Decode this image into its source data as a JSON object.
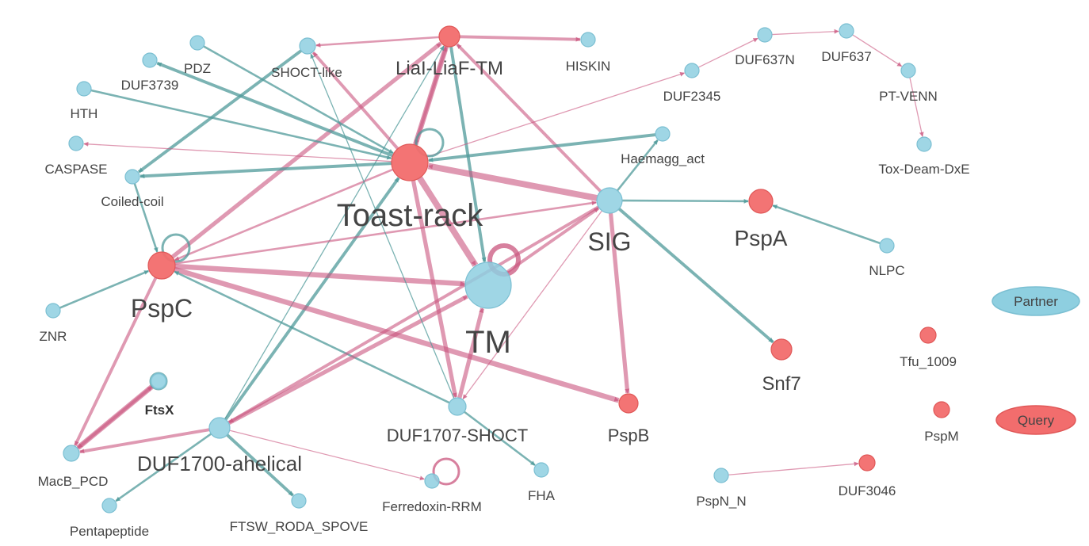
{
  "colors": {
    "query": "#f26d6d",
    "query_stroke": "#e05858",
    "partner": "#8ecfe0",
    "partner_stroke": "#7bbfd2",
    "edge_pink": "#c9557e",
    "edge_teal": "#4f9a9a"
  },
  "legend": {
    "partner": "Partner",
    "query": "Query"
  },
  "nodes": [
    {
      "id": "lialiaf",
      "label": "LiaI-LiaF-TM",
      "type": "query"
    },
    {
      "id": "hiskin",
      "label": "HISKIN",
      "type": "partner"
    },
    {
      "id": "shoct",
      "label": "SHOCT-like",
      "type": "partner"
    },
    {
      "id": "pdz",
      "label": "PDZ",
      "type": "partner"
    },
    {
      "id": "duf3739",
      "label": "DUF3739",
      "type": "partner"
    },
    {
      "id": "hth",
      "label": "HTH",
      "type": "partner"
    },
    {
      "id": "caspase",
      "label": "CASPASE",
      "type": "partner"
    },
    {
      "id": "coiled",
      "label": "Coiled-coil",
      "type": "partner"
    },
    {
      "id": "toast",
      "label": "Toast-rack",
      "type": "query"
    },
    {
      "id": "sig",
      "label": "SIG",
      "type": "partner"
    },
    {
      "id": "tm",
      "label": "TM",
      "type": "partner"
    },
    {
      "id": "pspc",
      "label": "PspC",
      "type": "query"
    },
    {
      "id": "znr",
      "label": "ZNR",
      "type": "partner"
    },
    {
      "id": "ftsx",
      "label": "FtsX",
      "type": "partner"
    },
    {
      "id": "macb",
      "label": "MacB_PCD",
      "type": "partner"
    },
    {
      "id": "penta",
      "label": "Pentapeptide",
      "type": "partner"
    },
    {
      "id": "duf1700",
      "label": "DUF1700-ahelical",
      "type": "partner"
    },
    {
      "id": "ftsw",
      "label": "FTSW_RODA_SPOVE",
      "type": "partner"
    },
    {
      "id": "ferre",
      "label": "Ferredoxin-RRM",
      "type": "partner"
    },
    {
      "id": "duf1707",
      "label": "DUF1707-SHOCT",
      "type": "partner"
    },
    {
      "id": "fha",
      "label": "FHA",
      "type": "partner"
    },
    {
      "id": "pspb",
      "label": "PspB",
      "type": "query"
    },
    {
      "id": "snf7",
      "label": "Snf7",
      "type": "query"
    },
    {
      "id": "pspa",
      "label": "PspA",
      "type": "query"
    },
    {
      "id": "nlpc",
      "label": "NLPC",
      "type": "partner"
    },
    {
      "id": "haem",
      "label": "Haemagg_act",
      "type": "partner"
    },
    {
      "id": "duf2345",
      "label": "DUF2345",
      "type": "partner"
    },
    {
      "id": "duf637n",
      "label": "DUF637N",
      "type": "partner"
    },
    {
      "id": "duf637",
      "label": "DUF637",
      "type": "partner"
    },
    {
      "id": "ptvenn",
      "label": "PT-VENN",
      "type": "partner"
    },
    {
      "id": "toxdeam",
      "label": "Tox-Deam-DxE",
      "type": "partner"
    },
    {
      "id": "tfu",
      "label": "Tfu_1009",
      "type": "query"
    },
    {
      "id": "pspm",
      "label": "PspM",
      "type": "query"
    },
    {
      "id": "pspnn",
      "label": "PspN_N",
      "type": "partner"
    },
    {
      "id": "duf3046",
      "label": "DUF3046",
      "type": "query"
    }
  ],
  "edges": [
    {
      "from": "lialiaf",
      "to": "hiskin",
      "color": "pink",
      "weight": 3
    },
    {
      "from": "lialiaf",
      "to": "shoct",
      "color": "pink",
      "weight": 2
    },
    {
      "from": "lialiaf",
      "to": "toast",
      "color": "pink",
      "weight": 5
    },
    {
      "from": "lialiaf",
      "to": "tm",
      "color": "teal",
      "weight": 3
    },
    {
      "from": "toast",
      "to": "lialiaf",
      "color": "pink",
      "weight": 3
    },
    {
      "from": "sig",
      "to": "lialiaf",
      "color": "pink",
      "weight": 3
    },
    {
      "from": "pspc",
      "to": "lialiaf",
      "color": "pink",
      "weight": 4
    },
    {
      "from": "duf1700",
      "to": "lialiaf",
      "color": "teal",
      "weight": 1
    },
    {
      "from": "toast",
      "to": "shoct",
      "color": "pink",
      "weight": 3
    },
    {
      "from": "shoct",
      "to": "coiled",
      "color": "teal",
      "weight": 3
    },
    {
      "from": "pdz",
      "to": "toast",
      "color": "teal",
      "weight": 2
    },
    {
      "from": "toast",
      "to": "duf3739",
      "color": "teal",
      "weight": 3
    },
    {
      "from": "hth",
      "to": "toast",
      "color": "teal",
      "weight": 2
    },
    {
      "from": "toast",
      "to": "caspase",
      "color": "pink",
      "weight": 1
    },
    {
      "from": "toast",
      "to": "coiled",
      "color": "teal",
      "weight": 3
    },
    {
      "from": "coiled",
      "to": "pspc",
      "color": "teal",
      "weight": 2
    },
    {
      "from": "haem",
      "to": "toast",
      "color": "teal",
      "weight": 3
    },
    {
      "from": "sig",
      "to": "toast",
      "color": "pink",
      "weight": 6
    },
    {
      "from": "toast",
      "to": "tm",
      "color": "pink",
      "weight": 6
    },
    {
      "from": "toast",
      "to": "pspc",
      "color": "pink",
      "weight": 2
    },
    {
      "from": "toast",
      "to": "duf1707",
      "color": "pink",
      "weight": 4
    },
    {
      "from": "duf1700",
      "to": "toast",
      "color": "teal",
      "weight": 3
    },
    {
      "from": "pspc",
      "to": "sig",
      "color": "pink",
      "weight": 2
    },
    {
      "from": "pspc",
      "to": "tm",
      "color": "pink",
      "weight": 5
    },
    {
      "from": "pspc",
      "to": "pspb",
      "color": "pink",
      "weight": 5
    },
    {
      "from": "pspc",
      "to": "macb",
      "color": "pink",
      "weight": 3
    },
    {
      "from": "duf1707",
      "to": "pspc",
      "color": "teal",
      "weight": 2
    },
    {
      "from": "znr",
      "to": "pspc",
      "color": "teal",
      "weight": 2
    },
    {
      "from": "sig",
      "to": "haem",
      "color": "teal",
      "weight": 2
    },
    {
      "from": "sig",
      "to": "pspa",
      "color": "teal",
      "weight": 2
    },
    {
      "from": "sig",
      "to": "snf7",
      "color": "teal",
      "weight": 3
    },
    {
      "from": "sig",
      "to": "pspb",
      "color": "pink",
      "weight": 4
    },
    {
      "from": "sig",
      "to": "duf1707",
      "color": "pink",
      "weight": 1
    },
    {
      "from": "sig",
      "to": "duf1700",
      "color": "pink",
      "weight": 3
    },
    {
      "from": "nlpc",
      "to": "pspa",
      "color": "teal",
      "weight": 2
    },
    {
      "from": "duf1700",
      "to": "tm",
      "color": "pink",
      "weight": 4
    },
    {
      "from": "duf1700",
      "to": "macb",
      "color": "pink",
      "weight": 3
    },
    {
      "from": "duf1700",
      "to": "ftsw",
      "color": "teal",
      "weight": 3
    },
    {
      "from": "duf1700",
      "to": "ferre",
      "color": "pink",
      "weight": 1
    },
    {
      "from": "duf1700",
      "to": "penta",
      "color": "teal",
      "weight": 2
    },
    {
      "from": "ftsx",
      "to": "macb",
      "color": "pink",
      "weight": 5
    },
    {
      "from": "macb",
      "to": "ftsx",
      "color": "pink",
      "weight": 3
    },
    {
      "from": "duf1707",
      "to": "tm",
      "color": "pink",
      "weight": 4
    },
    {
      "from": "duf1707",
      "to": "fha",
      "color": "teal",
      "weight": 2
    },
    {
      "from": "duf1707",
      "to": "shoct",
      "color": "teal",
      "weight": 1
    },
    {
      "from": "tm",
      "to": "sig",
      "color": "pink",
      "weight": 3
    },
    {
      "from": "pspnn",
      "to": "duf3046",
      "color": "pink",
      "weight": 1
    },
    {
      "from": "duf2345",
      "to": "duf637n",
      "color": "pink",
      "weight": 1
    },
    {
      "from": "duf637n",
      "to": "duf637",
      "color": "pink",
      "weight": 1
    },
    {
      "from": "duf637",
      "to": "ptvenn",
      "color": "pink",
      "weight": 1
    },
    {
      "from": "ptvenn",
      "to": "toxdeam",
      "color": "pink",
      "weight": 1
    },
    {
      "from": "toast",
      "to": "duf2345",
      "color": "pink",
      "weight": 1
    }
  ],
  "self_loops": [
    "toast",
    "tm",
    "pspc",
    "ferre",
    "ftsx"
  ]
}
